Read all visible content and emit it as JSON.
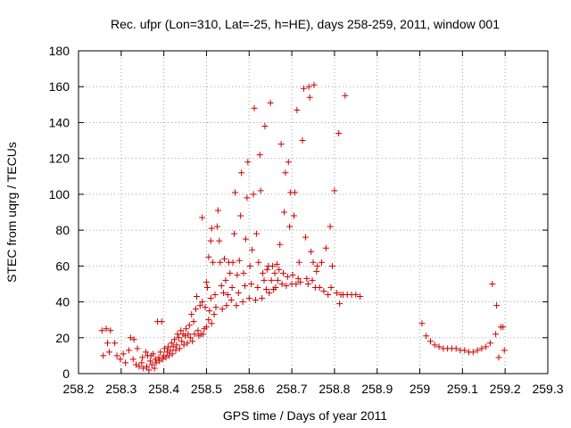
{
  "chart_data": {
    "type": "scatter",
    "title": "Rec. ufpr (Lon=310, Lat=-25, h=HE), days 258-259, 2011, window 001",
    "xlabel": "GPS time / Days of year 2011",
    "ylabel": "STEC from uqrg / TECUs",
    "xlim": [
      258.2,
      259.3
    ],
    "ylim": [
      0,
      180
    ],
    "xticks": [
      "258.2",
      "258.3",
      "258.4",
      "258.5",
      "258.6",
      "258.7",
      "258.8",
      "258.9",
      "259",
      "259.1",
      "259.2",
      "259.3"
    ],
    "yticks": [
      "0",
      "20",
      "40",
      "60",
      "80",
      "100",
      "120",
      "140",
      "160",
      "180"
    ],
    "grid": true,
    "marker": "plus",
    "color": "#cc0000",
    "series": [
      {
        "points": [
          [
            258.255,
            24
          ],
          [
            258.265,
            25
          ],
          [
            258.275,
            24
          ],
          [
            258.258,
            10
          ],
          [
            258.268,
            17
          ],
          [
            258.272,
            12
          ],
          [
            258.285,
            17
          ],
          [
            258.29,
            10
          ],
          [
            258.298,
            8
          ],
          [
            258.305,
            11
          ],
          [
            258.31,
            6
          ],
          [
            258.318,
            13
          ],
          [
            258.322,
            20
          ],
          [
            258.328,
            8
          ],
          [
            258.33,
            19
          ],
          [
            258.335,
            5
          ],
          [
            258.338,
            14
          ],
          [
            258.342,
            4
          ],
          [
            258.348,
            6
          ],
          [
            258.35,
            9
          ],
          [
            258.352,
            3
          ],
          [
            258.358,
            12
          ],
          [
            258.36,
            4
          ],
          [
            258.362,
            10
          ],
          [
            258.365,
            2
          ],
          [
            258.368,
            7
          ],
          [
            258.37,
            10
          ],
          [
            258.372,
            5
          ],
          [
            258.375,
            11
          ],
          [
            258.378,
            3
          ],
          [
            258.38,
            8
          ],
          [
            258.382,
            6
          ],
          [
            258.385,
            29
          ],
          [
            258.388,
            9
          ],
          [
            258.39,
            7
          ],
          [
            258.392,
            12
          ],
          [
            258.395,
            29
          ],
          [
            258.397,
            8
          ],
          [
            258.4,
            10
          ],
          [
            258.402,
            14
          ],
          [
            258.405,
            9
          ],
          [
            258.408,
            12
          ],
          [
            258.41,
            15
          ],
          [
            258.412,
            10
          ],
          [
            258.415,
            13
          ],
          [
            258.418,
            17
          ],
          [
            258.42,
            11
          ],
          [
            258.422,
            15
          ],
          [
            258.425,
            19
          ],
          [
            258.428,
            13
          ],
          [
            258.43,
            16
          ],
          [
            258.432,
            22
          ],
          [
            258.435,
            20
          ],
          [
            258.437,
            14
          ],
          [
            258.44,
            24
          ],
          [
            258.442,
            18
          ],
          [
            258.445,
            22
          ],
          [
            258.447,
            16
          ],
          [
            258.45,
            21
          ],
          [
            258.452,
            25
          ],
          [
            258.455,
            17
          ],
          [
            258.457,
            22
          ],
          [
            258.46,
            27
          ],
          [
            258.462,
            20
          ],
          [
            258.465,
            33
          ],
          [
            258.467,
            18
          ],
          [
            258.47,
            29
          ],
          [
            258.472,
            22
          ],
          [
            258.475,
            36
          ],
          [
            258.477,
            43
          ],
          [
            258.48,
            24
          ],
          [
            258.482,
            21
          ],
          [
            258.485,
            38
          ],
          [
            258.487,
            22
          ],
          [
            258.49,
            40
          ],
          [
            258.492,
            22
          ],
          [
            258.495,
            25
          ],
          [
            258.497,
            37
          ],
          [
            258.5,
            26
          ],
          [
            258.502,
            48
          ],
          [
            258.505,
            30
          ],
          [
            258.507,
            35
          ],
          [
            258.51,
            42
          ],
          [
            258.512,
            28
          ],
          [
            258.49,
            87
          ],
          [
            258.5,
            51
          ],
          [
            258.505,
            65
          ],
          [
            258.51,
            74
          ],
          [
            258.512,
            81
          ],
          [
            258.515,
            62
          ],
          [
            258.518,
            33
          ],
          [
            258.52,
            44
          ],
          [
            258.522,
            37
          ],
          [
            258.525,
            82
          ],
          [
            258.527,
            91
          ],
          [
            258.53,
            74
          ],
          [
            258.532,
            62
          ],
          [
            258.535,
            49
          ],
          [
            258.537,
            36
          ],
          [
            258.54,
            45
          ],
          [
            258.542,
            64
          ],
          [
            258.545,
            52
          ],
          [
            258.547,
            38
          ],
          [
            258.55,
            44
          ],
          [
            258.552,
            62
          ],
          [
            258.555,
            56
          ],
          [
            258.558,
            41
          ],
          [
            258.56,
            48
          ],
          [
            258.562,
            62
          ],
          [
            258.565,
            78
          ],
          [
            258.567,
            101
          ],
          [
            258.57,
            38
          ],
          [
            258.572,
            55
          ],
          [
            258.575,
            45
          ],
          [
            258.577,
            63
          ],
          [
            258.58,
            88
          ],
          [
            258.582,
            112
          ],
          [
            258.585,
            40
          ],
          [
            258.587,
            56
          ],
          [
            258.59,
            49
          ],
          [
            258.592,
            75
          ],
          [
            258.595,
            98
          ],
          [
            258.597,
            118
          ],
          [
            258.6,
            42
          ],
          [
            258.602,
            60
          ],
          [
            258.605,
            50
          ],
          [
            258.607,
            69
          ],
          [
            258.61,
            100
          ],
          [
            258.612,
            148
          ],
          [
            258.615,
            41
          ],
          [
            258.617,
            78
          ],
          [
            258.62,
            48
          ],
          [
            258.622,
            62
          ],
          [
            258.625,
            122
          ],
          [
            258.627,
            102
          ],
          [
            258.63,
            42
          ],
          [
            258.632,
            56
          ],
          [
            258.635,
            52
          ],
          [
            258.637,
            138
          ],
          [
            258.64,
            47
          ],
          [
            258.642,
            58
          ],
          [
            258.645,
            60
          ],
          [
            258.647,
            45
          ],
          [
            258.65,
            151
          ],
          [
            258.652,
            52
          ],
          [
            258.655,
            60
          ],
          [
            258.657,
            47
          ],
          [
            258.66,
            56
          ],
          [
            258.662,
            48
          ],
          [
            258.665,
            61
          ],
          [
            258.667,
            52
          ],
          [
            258.67,
            58
          ],
          [
            258.672,
            72
          ],
          [
            258.675,
            128
          ],
          [
            258.677,
            50
          ],
          [
            258.68,
            56
          ],
          [
            258.682,
            90
          ],
          [
            258.685,
            112
          ],
          [
            258.687,
            49
          ],
          [
            258.69,
            54
          ],
          [
            258.692,
            118
          ],
          [
            258.695,
            82
          ],
          [
            258.697,
            101
          ],
          [
            258.7,
            50
          ],
          [
            258.702,
            55
          ],
          [
            258.705,
            88
          ],
          [
            258.707,
            101
          ],
          [
            258.71,
            50
          ],
          [
            258.712,
            147
          ],
          [
            258.715,
            53
          ],
          [
            258.717,
            62
          ],
          [
            258.72,
            51
          ],
          [
            258.725,
            130
          ],
          [
            258.728,
            159
          ],
          [
            258.732,
            76
          ],
          [
            258.735,
            53
          ],
          [
            258.738,
            50
          ],
          [
            258.74,
            160
          ],
          [
            258.742,
            154
          ],
          [
            258.745,
            68
          ],
          [
            258.748,
            52
          ],
          [
            258.75,
            62
          ],
          [
            258.752,
            161
          ],
          [
            258.755,
            48
          ],
          [
            258.758,
            57
          ],
          [
            258.76,
            60
          ],
          [
            258.765,
            48
          ],
          [
            258.77,
            62
          ],
          [
            258.775,
            46
          ],
          [
            258.78,
            70
          ],
          [
            258.785,
            44
          ],
          [
            258.79,
            82
          ],
          [
            258.792,
            48
          ],
          [
            258.795,
            60
          ],
          [
            258.8,
            102
          ],
          [
            258.805,
            45
          ],
          [
            258.81,
            134
          ],
          [
            258.812,
            39
          ],
          [
            258.815,
            44
          ],
          [
            258.82,
            44
          ],
          [
            258.825,
            155
          ],
          [
            258.83,
            44
          ],
          [
            258.84,
            44
          ],
          [
            258.85,
            44
          ],
          [
            258.86,
            43
          ],
          [
            259.005,
            28
          ],
          [
            259.015,
            21
          ],
          [
            259.025,
            18
          ],
          [
            259.035,
            16
          ],
          [
            259.045,
            15
          ],
          [
            259.055,
            14
          ],
          [
            259.065,
            14
          ],
          [
            259.075,
            14
          ],
          [
            259.085,
            14
          ],
          [
            259.095,
            13
          ],
          [
            259.105,
            13
          ],
          [
            259.115,
            12
          ],
          [
            259.125,
            12
          ],
          [
            259.135,
            13
          ],
          [
            259.145,
            14
          ],
          [
            259.155,
            15
          ],
          [
            259.165,
            17
          ],
          [
            259.17,
            50
          ],
          [
            259.178,
            22
          ],
          [
            259.18,
            38
          ],
          [
            259.185,
            9
          ],
          [
            259.19,
            26
          ],
          [
            259.195,
            26
          ],
          [
            259.198,
            13
          ]
        ]
      }
    ]
  }
}
